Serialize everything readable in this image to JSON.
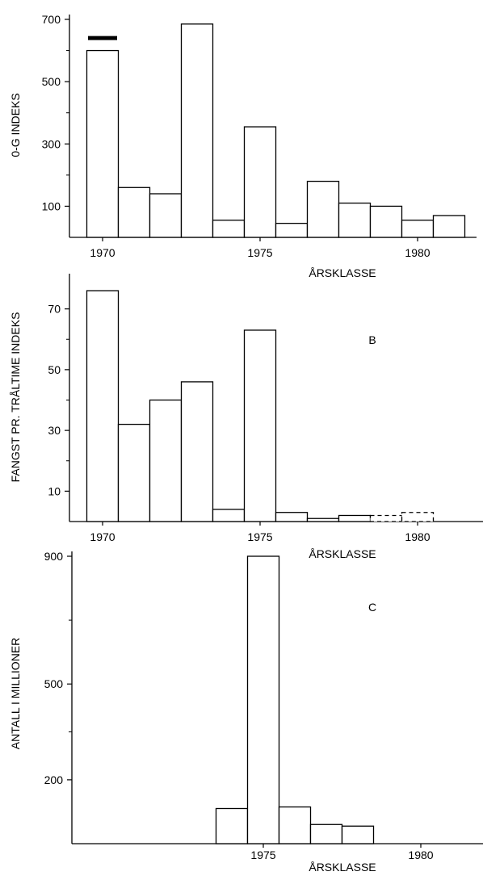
{
  "chart_data": [
    {
      "type": "bar",
      "panel_label": "",
      "ylabel": "0-G INDEKS",
      "xlabel": "ÅRSKLASSE",
      "ylim": [
        0,
        700
      ],
      "yticks": [
        100,
        300,
        500,
        700
      ],
      "xticks": [
        1970,
        1975,
        1980
      ],
      "x": [
        1970,
        1971,
        1972,
        1973,
        1974,
        1975,
        1976,
        1977,
        1978,
        1979,
        1980,
        1981
      ],
      "values": [
        600,
        160,
        140,
        685,
        55,
        355,
        45,
        180,
        110,
        100,
        55,
        70
      ],
      "dashed": [
        false,
        false,
        false,
        false,
        false,
        false,
        false,
        false,
        false,
        false,
        false,
        false
      ],
      "marker_at": 1970,
      "marker_value": 640
    },
    {
      "type": "bar",
      "panel_label": "B",
      "ylabel": "FANGST PR. TRÅLTIME INDEKS",
      "xlabel": "ÅRSKLASSE",
      "ylim": [
        0,
        80
      ],
      "yticks": [
        10,
        30,
        50,
        70
      ],
      "xticks": [
        1970,
        1975,
        1980
      ],
      "x": [
        1970,
        1971,
        1972,
        1973,
        1974,
        1975,
        1976,
        1977,
        1978,
        1979,
        1980
      ],
      "values": [
        76,
        32,
        40,
        46,
        4,
        63,
        3,
        1,
        2,
        2,
        3
      ],
      "dashed": [
        false,
        false,
        false,
        false,
        false,
        false,
        false,
        false,
        false,
        true,
        true
      ]
    },
    {
      "type": "bar",
      "panel_label": "C",
      "ylabel": "ANTALL I MILLIONER",
      "xlabel": "ÅRSKLASSE",
      "ylim": [
        0,
        900
      ],
      "yticks": [
        200,
        500,
        900
      ],
      "xticks": [
        1975,
        1980
      ],
      "x": [
        1974,
        1975,
        1976,
        1977,
        1978
      ],
      "values": [
        110,
        900,
        115,
        60,
        55
      ],
      "dashed": [
        false,
        false,
        false,
        false,
        false
      ]
    }
  ]
}
